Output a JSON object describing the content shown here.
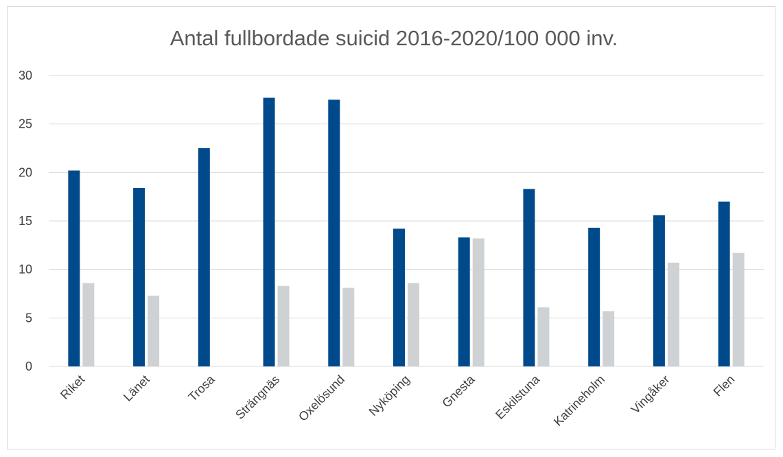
{
  "chart_data": {
    "type": "bar",
    "title": "Antal fullbordade suicid 2016-2020/100 000 inv.",
    "xlabel": "",
    "ylabel": "",
    "ylim": [
      0,
      30
    ],
    "yticks": [
      "0",
      "5",
      "10",
      "15",
      "20",
      "25",
      "30"
    ],
    "grid": true,
    "legend": "none",
    "categories": [
      "Riket",
      "Länet",
      "Trosa",
      "Strängnäs",
      "Oxelösund",
      "Nyköping",
      "Gnesta",
      "Eskilstuna",
      "Katrineholm",
      "Vingåker",
      "Flen"
    ],
    "series": [
      {
        "color": "#004a8c",
        "values": [
          20.2,
          18.4,
          22.5,
          27.7,
          27.5,
          14.2,
          13.3,
          18.3,
          14.3,
          15.6,
          17.0
        ]
      },
      {
        "color": "#cfd2d5",
        "values": [
          8.6,
          7.3,
          null,
          8.3,
          8.1,
          8.6,
          13.2,
          6.1,
          5.7,
          10.7,
          11.7
        ]
      }
    ]
  }
}
